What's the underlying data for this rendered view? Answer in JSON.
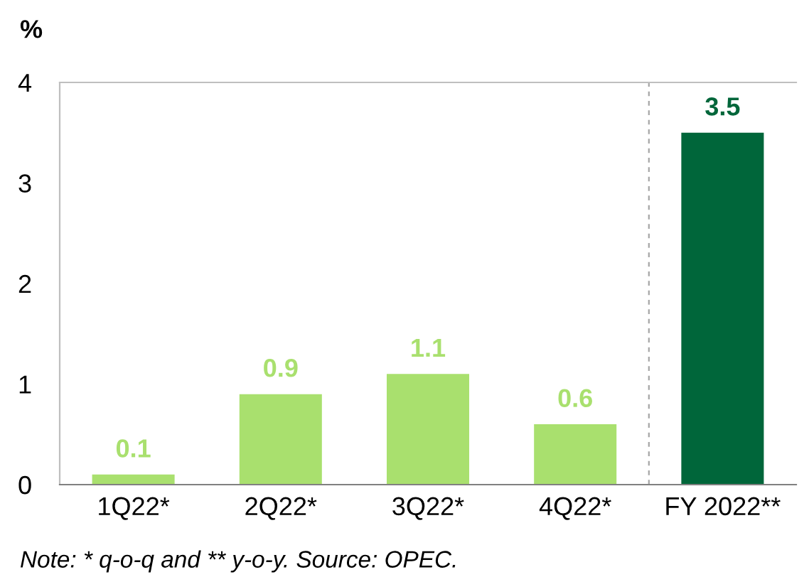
{
  "chart_data": {
    "type": "bar",
    "ylabel": "%",
    "categories": [
      "1Q22*",
      "2Q22*",
      "3Q22*",
      "4Q22*",
      "FY 2022**"
    ],
    "values": [
      0.1,
      0.9,
      1.1,
      0.6,
      3.5
    ],
    "colors": [
      "#a9e06e",
      "#a9e06e",
      "#a9e06e",
      "#a9e06e",
      "#00663a"
    ],
    "data_labels": true,
    "ylim": [
      0,
      4
    ],
    "yticks": [
      0,
      1,
      2,
      3,
      4
    ],
    "grid": false,
    "legend": false,
    "annotations": [
      "Note: * q-o-q and ** y-o-y. Source: OPEC."
    ]
  }
}
